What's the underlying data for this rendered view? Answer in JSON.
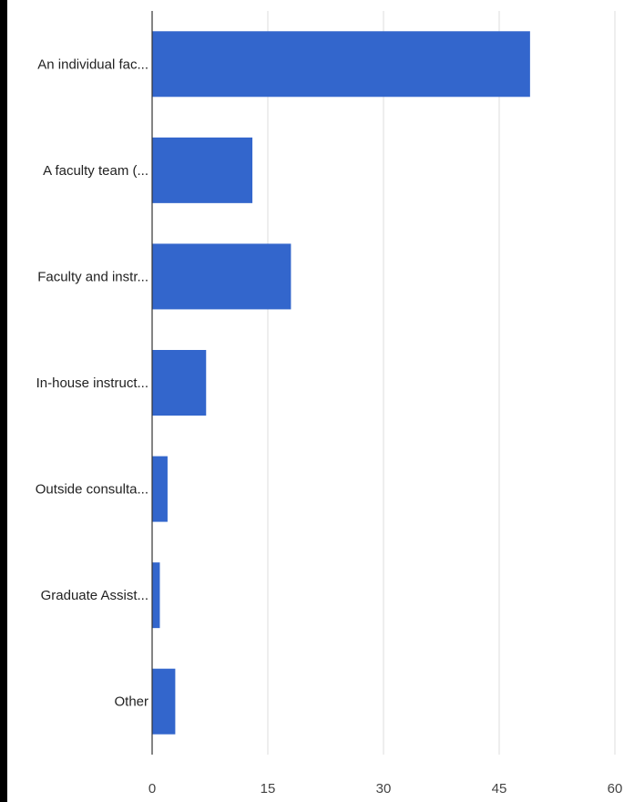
{
  "chart_data": {
    "type": "bar",
    "orientation": "horizontal",
    "categories": [
      "An individual fac...",
      "A faculty team (...",
      "Faculty and instr...",
      "In-house instruct...",
      "Outside consulta...",
      "Graduate Assist...",
      "Other"
    ],
    "values": [
      49,
      13,
      18,
      7,
      2,
      1,
      3
    ],
    "xlim": [
      0,
      60
    ],
    "x_ticks": [
      0,
      15,
      30,
      45,
      60
    ],
    "x_tick_labels": [
      "0",
      "15",
      "30",
      "45",
      "60"
    ],
    "grid": true,
    "legend": "none",
    "title": "",
    "xlabel": "",
    "ylabel": "",
    "colors": {
      "bar": "#3366cc",
      "grid": "#dddddd",
      "axis": "#333333"
    }
  }
}
